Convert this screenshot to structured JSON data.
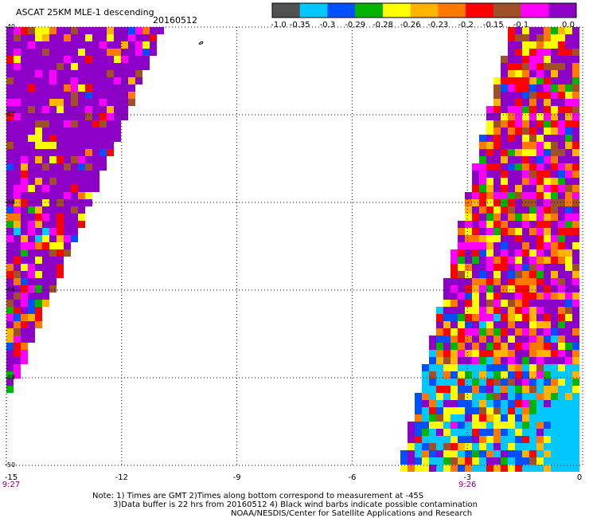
{
  "header": {
    "title": "ASCAT 25KM MLE-1 descending",
    "date": "20160512"
  },
  "colorbar": {
    "labels": [
      "-1.0",
      "-0.35",
      "-0.3",
      "-0.29",
      "-0.28",
      "-0.26",
      "-0.23",
      "-0.2",
      "-0.15",
      "-0.1",
      "0.0"
    ],
    "colors": [
      "#505050",
      "#00c8ff",
      "#0050ff",
      "#00b400",
      "#ffff00",
      "#ffb400",
      "#ff7800",
      "#ff0000",
      "#a05028",
      "#ff00ff",
      "#8c00c8"
    ]
  },
  "axes": {
    "lat_labels": [
      "-40",
      "-42",
      "-44",
      "-46",
      "-48",
      "-50"
    ],
    "lon_labels": [
      "-15",
      "-12",
      "-9",
      "-6",
      "-3",
      "0"
    ],
    "time_labels": [
      "9:27",
      "9:26"
    ],
    "lat_range": [
      -50,
      -40
    ],
    "lon_range": [
      -15,
      0
    ]
  },
  "notes": {
    "line1": "Note: 1) Times are GMT 2)Times along bottom correspond to measurement at -45S",
    "line2": "3)Data buffer is 22 hrs from 20160512 4) Black wind barbs indicate possible contamination",
    "line3": "NOAA/NESDIS/Center for Satellite Applications and Research"
  }
}
